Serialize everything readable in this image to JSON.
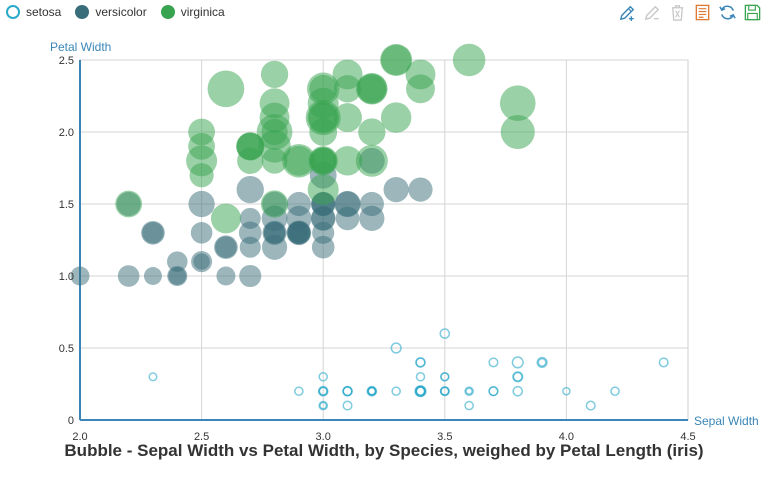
{
  "legend": {
    "items": [
      {
        "label": "setosa",
        "color": "#2aa9c9"
      },
      {
        "label": "versicolor",
        "color": "#3a6d7a"
      },
      {
        "label": "virginica",
        "color": "#38a450"
      }
    ]
  },
  "toolbox": {
    "tools": [
      "mark-pen-icon",
      "mark-eraser-icon",
      "clear-marks-icon",
      "data-view-icon",
      "restore-icon",
      "save-image-icon"
    ],
    "active_color": "#3a86b8",
    "disabled_color": "#c8c8c8",
    "data_view_color": "#e07b33",
    "save_color": "#38a450"
  },
  "chart_data": {
    "type": "scatter",
    "title": "Bubble - Sepal Width vs Petal Width, by Species, weighed by Petal Length (iris)",
    "xlabel": "Sepal Width",
    "ylabel": "Petal Width",
    "xlim": [
      2.0,
      4.5
    ],
    "ylim": [
      0,
      2.5
    ],
    "xticks": [
      "2.0",
      "2.5",
      "3.0",
      "3.5",
      "4.0",
      "4.5"
    ],
    "yticks": [
      "0",
      "0.5",
      "1.0",
      "1.5",
      "2.0",
      "2.5"
    ],
    "grid": true,
    "legend_position": "top-left",
    "size_by": "Petal Length",
    "series": [
      {
        "name": "setosa",
        "color": "#2aa9c9",
        "style": "hollow",
        "points": [
          [
            3.5,
            0.2,
            1.4
          ],
          [
            3.0,
            0.2,
            1.4
          ],
          [
            3.2,
            0.2,
            1.3
          ],
          [
            3.1,
            0.2,
            1.5
          ],
          [
            3.6,
            0.2,
            1.4
          ],
          [
            3.9,
            0.4,
            1.7
          ],
          [
            3.4,
            0.3,
            1.4
          ],
          [
            3.4,
            0.2,
            1.5
          ],
          [
            2.9,
            0.2,
            1.4
          ],
          [
            3.1,
            0.1,
            1.5
          ],
          [
            3.7,
            0.2,
            1.5
          ],
          [
            3.4,
            0.2,
            1.6
          ],
          [
            3.0,
            0.1,
            1.4
          ],
          [
            3.0,
            0.1,
            1.1
          ],
          [
            4.0,
            0.2,
            1.2
          ],
          [
            4.4,
            0.4,
            1.5
          ],
          [
            3.9,
            0.4,
            1.3
          ],
          [
            3.5,
            0.3,
            1.4
          ],
          [
            3.8,
            0.3,
            1.7
          ],
          [
            3.8,
            0.3,
            1.5
          ],
          [
            3.4,
            0.2,
            1.7
          ],
          [
            3.7,
            0.4,
            1.5
          ],
          [
            3.6,
            0.2,
            1.0
          ],
          [
            3.3,
            0.5,
            1.7
          ],
          [
            3.4,
            0.2,
            1.9
          ],
          [
            3.0,
            0.2,
            1.6
          ],
          [
            3.4,
            0.4,
            1.6
          ],
          [
            3.5,
            0.2,
            1.5
          ],
          [
            3.4,
            0.2,
            1.4
          ],
          [
            3.2,
            0.2,
            1.6
          ],
          [
            3.1,
            0.2,
            1.6
          ],
          [
            3.4,
            0.4,
            1.5
          ],
          [
            4.1,
            0.1,
            1.5
          ],
          [
            4.2,
            0.2,
            1.4
          ],
          [
            3.1,
            0.2,
            1.5
          ],
          [
            3.2,
            0.2,
            1.2
          ],
          [
            3.5,
            0.2,
            1.3
          ],
          [
            3.6,
            0.1,
            1.4
          ],
          [
            3.0,
            0.2,
            1.3
          ],
          [
            3.4,
            0.2,
            1.5
          ],
          [
            3.5,
            0.3,
            1.3
          ],
          [
            2.3,
            0.3,
            1.3
          ],
          [
            3.2,
            0.2,
            1.3
          ],
          [
            3.5,
            0.6,
            1.6
          ],
          [
            3.8,
            0.4,
            1.9
          ],
          [
            3.0,
            0.3,
            1.4
          ],
          [
            3.8,
            0.2,
            1.6
          ],
          [
            3.2,
            0.2,
            1.4
          ],
          [
            3.7,
            0.2,
            1.5
          ],
          [
            3.3,
            0.2,
            1.4
          ]
        ]
      },
      {
        "name": "versicolor",
        "color": "#3a6d7a",
        "style": "filled",
        "points": [
          [
            3.2,
            1.4,
            4.7
          ],
          [
            3.2,
            1.5,
            4.5
          ],
          [
            3.1,
            1.5,
            4.9
          ],
          [
            2.3,
            1.3,
            4.0
          ],
          [
            2.8,
            1.5,
            4.6
          ],
          [
            2.8,
            1.3,
            4.5
          ],
          [
            3.3,
            1.6,
            4.7
          ],
          [
            2.4,
            1.0,
            3.3
          ],
          [
            2.9,
            1.3,
            4.6
          ],
          [
            2.7,
            1.4,
            3.9
          ],
          [
            2.0,
            1.0,
            3.5
          ],
          [
            3.0,
            1.5,
            4.2
          ],
          [
            2.2,
            1.0,
            4.0
          ],
          [
            2.9,
            1.4,
            4.7
          ],
          [
            2.9,
            1.3,
            3.6
          ],
          [
            3.1,
            1.4,
            4.4
          ],
          [
            3.0,
            1.5,
            4.5
          ],
          [
            2.7,
            1.0,
            4.1
          ],
          [
            2.2,
            1.5,
            4.5
          ],
          [
            2.5,
            1.1,
            3.9
          ],
          [
            3.2,
            1.8,
            4.8
          ],
          [
            2.8,
            1.3,
            4.0
          ],
          [
            2.5,
            1.5,
            4.9
          ],
          [
            2.8,
            1.2,
            4.7
          ],
          [
            2.9,
            1.3,
            4.3
          ],
          [
            3.0,
            1.4,
            4.4
          ],
          [
            2.8,
            1.4,
            4.8
          ],
          [
            3.0,
            1.7,
            5.0
          ],
          [
            2.9,
            1.5,
            4.5
          ],
          [
            2.6,
            1.0,
            3.5
          ],
          [
            2.4,
            1.1,
            3.8
          ],
          [
            2.4,
            1.0,
            3.7
          ],
          [
            2.7,
            1.2,
            3.9
          ],
          [
            2.7,
            1.6,
            5.1
          ],
          [
            3.0,
            1.5,
            4.5
          ],
          [
            3.4,
            1.6,
            4.5
          ],
          [
            3.1,
            1.5,
            4.7
          ],
          [
            2.3,
            1.3,
            4.4
          ],
          [
            3.0,
            1.3,
            4.1
          ],
          [
            2.5,
            1.3,
            4.0
          ],
          [
            2.6,
            1.2,
            4.4
          ],
          [
            3.0,
            1.4,
            4.6
          ],
          [
            2.6,
            1.2,
            4.0
          ],
          [
            2.3,
            1.0,
            3.3
          ],
          [
            2.7,
            1.3,
            4.2
          ],
          [
            3.0,
            1.2,
            4.2
          ],
          [
            2.9,
            1.3,
            4.2
          ],
          [
            2.9,
            1.3,
            4.3
          ],
          [
            2.5,
            1.1,
            3.0
          ],
          [
            2.8,
            1.3,
            4.1
          ]
        ]
      },
      {
        "name": "virginica",
        "color": "#38a450",
        "style": "filled",
        "points": [
          [
            3.3,
            2.5,
            6.0
          ],
          [
            2.7,
            1.9,
            5.1
          ],
          [
            3.0,
            2.1,
            5.9
          ],
          [
            2.9,
            1.8,
            5.6
          ],
          [
            3.0,
            2.2,
            5.8
          ],
          [
            3.0,
            2.1,
            6.6
          ],
          [
            2.5,
            1.7,
            4.5
          ],
          [
            2.9,
            1.8,
            6.3
          ],
          [
            2.5,
            1.8,
            5.8
          ],
          [
            3.6,
            2.5,
            6.1
          ],
          [
            3.2,
            2.0,
            5.1
          ],
          [
            2.7,
            1.9,
            5.3
          ],
          [
            3.0,
            2.1,
            5.5
          ],
          [
            2.5,
            2.0,
            5.0
          ],
          [
            2.8,
            2.4,
            5.1
          ],
          [
            3.2,
            2.3,
            5.3
          ],
          [
            3.0,
            1.8,
            5.5
          ],
          [
            3.8,
            2.2,
            6.7
          ],
          [
            2.6,
            2.3,
            6.9
          ],
          [
            2.2,
            1.5,
            5.0
          ],
          [
            3.2,
            2.3,
            5.7
          ],
          [
            2.8,
            2.0,
            4.9
          ],
          [
            2.8,
            2.0,
            6.7
          ],
          [
            2.7,
            1.8,
            4.9
          ],
          [
            3.3,
            2.1,
            5.7
          ],
          [
            3.2,
            1.8,
            6.0
          ],
          [
            2.8,
            1.8,
            4.8
          ],
          [
            3.0,
            1.8,
            4.9
          ],
          [
            2.8,
            2.1,
            5.6
          ],
          [
            3.0,
            1.6,
            5.8
          ],
          [
            2.8,
            1.9,
            6.1
          ],
          [
            3.8,
            2.0,
            6.4
          ],
          [
            2.8,
            2.2,
            5.6
          ],
          [
            2.8,
            1.5,
            5.1
          ],
          [
            2.6,
            1.4,
            5.6
          ],
          [
            3.0,
            2.3,
            6.1
          ],
          [
            3.4,
            2.4,
            5.6
          ],
          [
            3.1,
            1.8,
            5.5
          ],
          [
            3.0,
            1.8,
            4.8
          ],
          [
            3.1,
            2.1,
            5.4
          ],
          [
            3.1,
            2.4,
            5.6
          ],
          [
            3.1,
            2.3,
            5.1
          ],
          [
            2.7,
            1.9,
            5.1
          ],
          [
            3.2,
            2.3,
            5.9
          ],
          [
            3.3,
            2.5,
            5.7
          ],
          [
            3.0,
            2.3,
            5.2
          ],
          [
            2.5,
            1.9,
            5.0
          ],
          [
            3.0,
            2.0,
            5.2
          ],
          [
            3.4,
            2.3,
            5.4
          ],
          [
            3.0,
            1.8,
            5.1
          ]
        ]
      }
    ]
  }
}
